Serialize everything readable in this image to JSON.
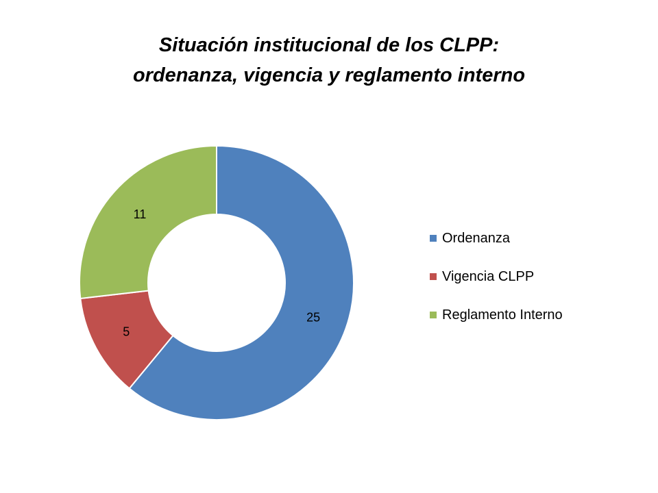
{
  "chart_data": {
    "type": "pie",
    "variant": "donut",
    "title": [
      "Situación institucional de los CLPP:",
      "ordenanza, vigencia y reglamento interno"
    ],
    "categories": [
      "Ordenanza",
      "Vigencia CLPP",
      "Reglamento Interno"
    ],
    "values": [
      25,
      5,
      11
    ],
    "colors": [
      "#4F81BD",
      "#C0504D",
      "#9BBB59"
    ],
    "data_labels": [
      "25",
      "5",
      "11"
    ],
    "legend_position": "right",
    "start_angle": "top, clockwise"
  }
}
